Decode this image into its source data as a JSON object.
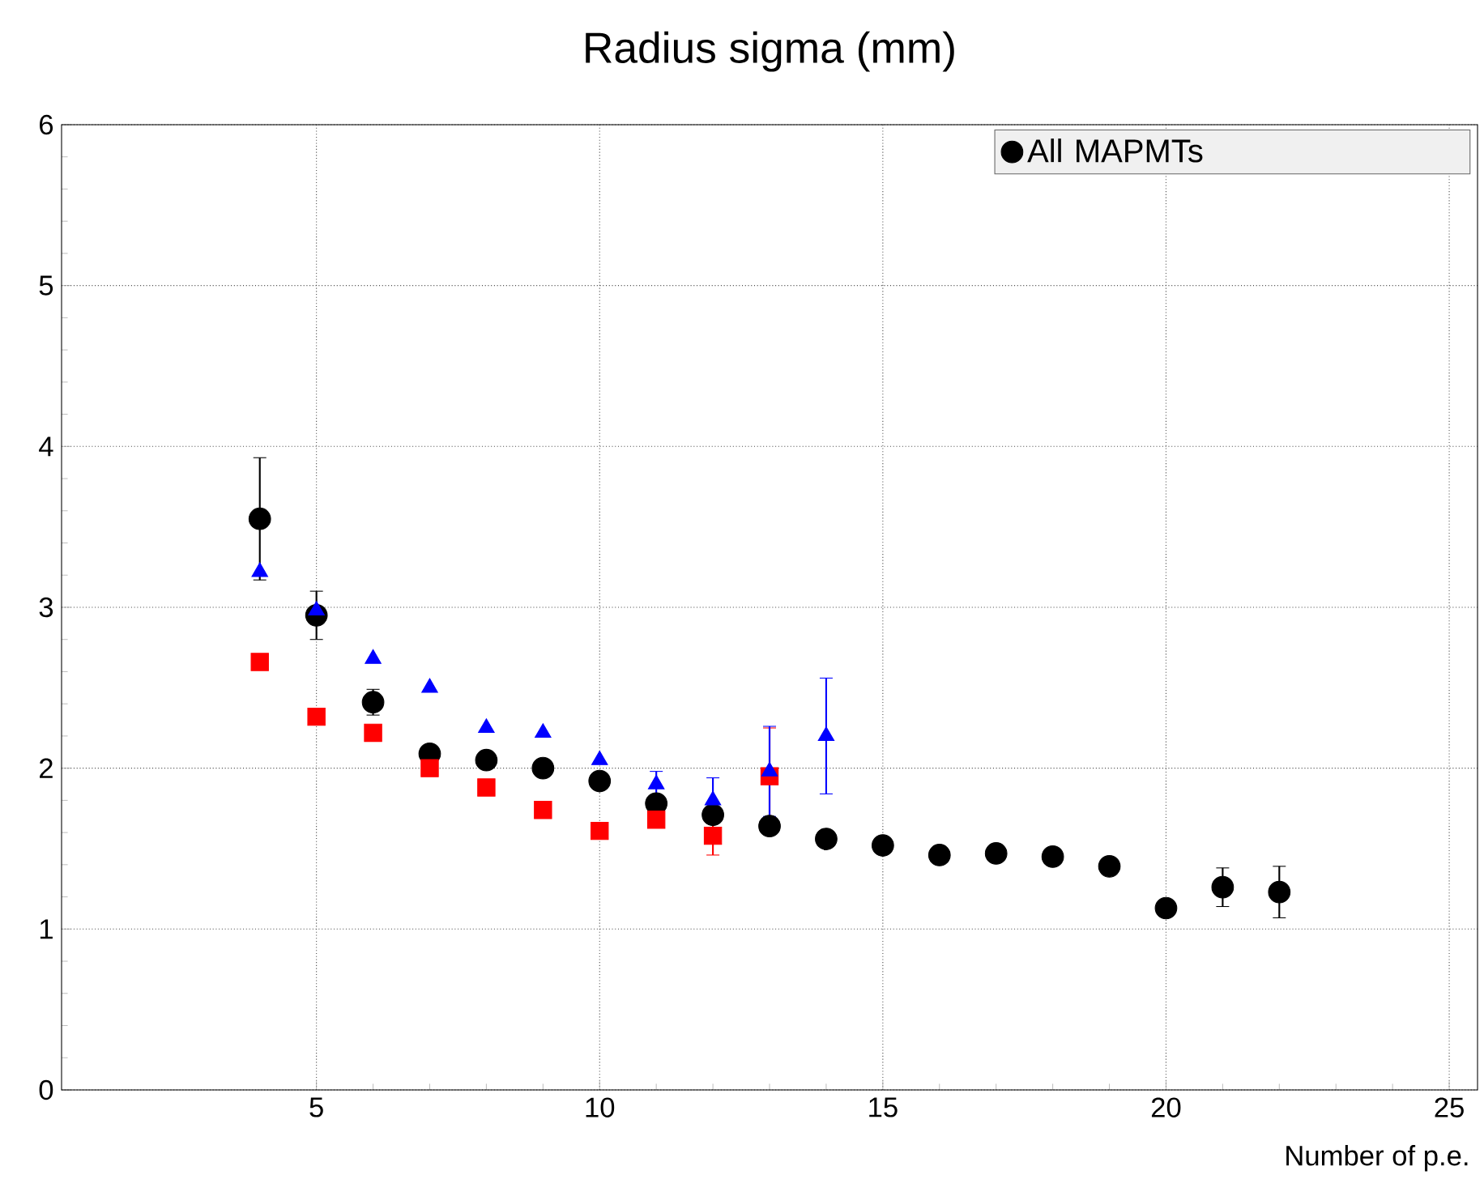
{
  "chart_data": {
    "type": "scatter",
    "title": "Radius sigma (mm)",
    "xlabel": "Number of p.e.",
    "xlim": [
      0.5,
      25.5
    ],
    "ylim": [
      0,
      6
    ],
    "xticks": [
      5,
      10,
      15,
      20,
      25
    ],
    "yticks": [
      0,
      1,
      2,
      3,
      4,
      5,
      6
    ],
    "grid": true,
    "legend": "top right",
    "series": [
      {
        "name": "All MAPMTs",
        "color": "#000000",
        "marker": "circle",
        "x": [
          4,
          5,
          6,
          7,
          8,
          9,
          10,
          11,
          12,
          13,
          14,
          15,
          16,
          17,
          18,
          19,
          20,
          21,
          22
        ],
        "values": [
          3.55,
          2.95,
          2.41,
          2.09,
          2.05,
          2.0,
          1.92,
          1.78,
          1.71,
          1.64,
          1.56,
          1.52,
          1.46,
          1.47,
          1.45,
          1.39,
          1.13,
          1.26,
          1.23
        ],
        "errors": [
          0.38,
          0.15,
          0.08,
          null,
          null,
          null,
          null,
          null,
          null,
          null,
          null,
          null,
          null,
          null,
          null,
          null,
          null,
          0.12,
          0.16
        ]
      },
      {
        "color": "#ff0000",
        "marker": "square",
        "x": [
          4,
          5,
          6,
          7,
          8,
          9,
          10,
          11,
          12,
          13
        ],
        "values": [
          2.66,
          2.32,
          2.22,
          2.0,
          1.88,
          1.74,
          1.61,
          1.68,
          1.58,
          1.95
        ],
        "errors": [
          null,
          null,
          null,
          null,
          null,
          null,
          null,
          null,
          0.12,
          0.3
        ]
      },
      {
        "color": "#0000ff",
        "marker": "triangle",
        "x": [
          4,
          5,
          6,
          7,
          8,
          9,
          10,
          11,
          12,
          13,
          14
        ],
        "values": [
          3.22,
          2.98,
          2.68,
          2.5,
          2.25,
          2.22,
          2.05,
          1.9,
          1.8,
          1.98,
          2.2
        ],
        "errors": [
          null,
          null,
          null,
          null,
          null,
          null,
          null,
          0.08,
          0.14,
          0.28,
          0.36
        ]
      }
    ]
  }
}
